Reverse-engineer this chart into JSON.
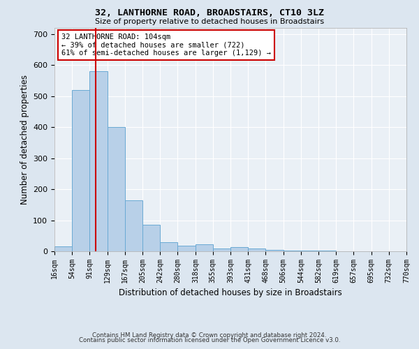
{
  "title": "32, LANTHORNE ROAD, BROADSTAIRS, CT10 3LZ",
  "subtitle": "Size of property relative to detached houses in Broadstairs",
  "xlabel": "Distribution of detached houses by size in Broadstairs",
  "ylabel": "Number of detached properties",
  "bin_edges": [
    16,
    54,
    91,
    129,
    167,
    205,
    242,
    280,
    318,
    355,
    393,
    431,
    468,
    506,
    544,
    582,
    619,
    657,
    695,
    732,
    770
  ],
  "bar_heights": [
    15,
    520,
    580,
    400,
    165,
    85,
    30,
    18,
    22,
    10,
    13,
    8,
    4,
    3,
    2,
    2,
    1,
    1,
    0,
    1
  ],
  "bar_color": "#b8d0e8",
  "bar_edge_color": "#6aaad4",
  "property_size": 104,
  "vline_color": "#cc0000",
  "annotation_line1": "32 LANTHORNE ROAD: 104sqm",
  "annotation_line2": "← 39% of detached houses are smaller (722)",
  "annotation_line3": "61% of semi-detached houses are larger (1,129) →",
  "annotation_box_color": "white",
  "annotation_box_edge_color": "#cc0000",
  "footer_line1": "Contains HM Land Registry data © Crown copyright and database right 2024.",
  "footer_line2": "Contains public sector information licensed under the Open Government Licence v3.0.",
  "ylim": [
    0,
    720
  ],
  "yticks": [
    0,
    100,
    200,
    300,
    400,
    500,
    600,
    700
  ],
  "bg_color": "#dce6f0",
  "axes_bg_color": "#eaf0f6"
}
